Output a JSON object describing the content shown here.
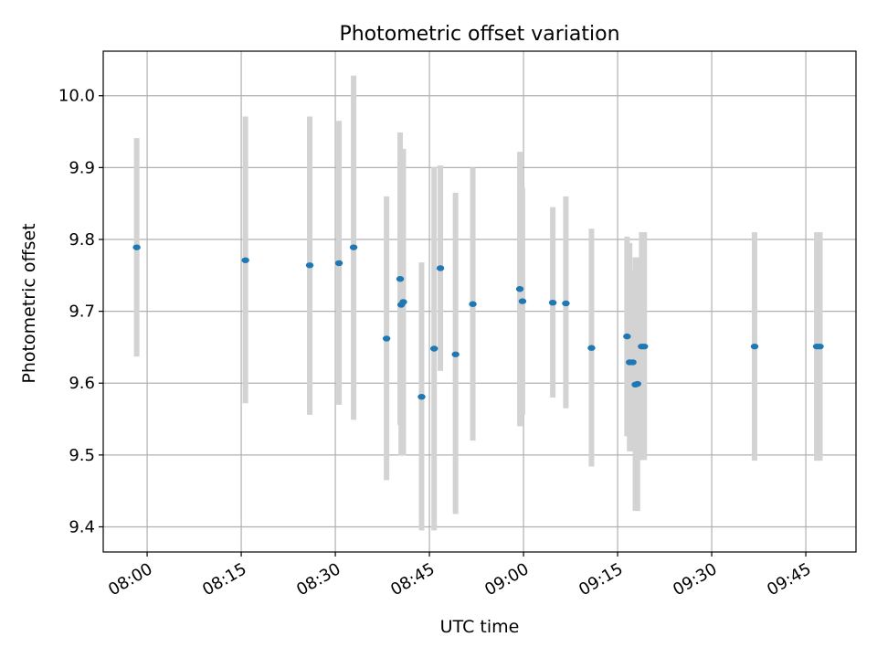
{
  "chart_data": {
    "type": "scatter",
    "title": "Photometric offset variation",
    "xlabel": "UTC time",
    "ylabel": "Photometric offset",
    "grid": true,
    "x_scale": "time",
    "xlim": [
      "07:53",
      "09:53"
    ],
    "ylim": [
      9.365,
      10.062
    ],
    "x_ticks": [
      "08:00",
      "08:15",
      "08:30",
      "08:45",
      "09:00",
      "09:15",
      "09:30",
      "09:45"
    ],
    "y_ticks": [
      "9.4",
      "9.5",
      "9.6",
      "9.7",
      "9.8",
      "9.9",
      "10.0"
    ],
    "errorbar_color": "#d3d3d3",
    "marker_color": "#1f77b4",
    "points": [
      {
        "x": "07:58:20",
        "y": 9.789,
        "yerr_low": 9.637,
        "yerr_high": 9.941
      },
      {
        "x": "08:15:40",
        "y": 9.771,
        "yerr_low": 9.572,
        "yerr_high": 9.971
      },
      {
        "x": "08:25:55",
        "y": 9.764,
        "yerr_low": 9.556,
        "yerr_high": 9.971
      },
      {
        "x": "08:30:35",
        "y": 9.767,
        "yerr_low": 9.57,
        "yerr_high": 9.965
      },
      {
        "x": "08:32:55",
        "y": 9.789,
        "yerr_low": 9.549,
        "yerr_high": 10.028
      },
      {
        "x": "08:38:10",
        "y": 9.662,
        "yerr_low": 9.465,
        "yerr_high": 9.86
      },
      {
        "x": "08:40:20",
        "y": 9.745,
        "yerr_low": 9.542,
        "yerr_high": 9.949
      },
      {
        "x": "08:40:30",
        "y": 9.709,
        "yerr_low": 9.499,
        "yerr_high": 9.92
      },
      {
        "x": "08:40:50",
        "y": 9.713,
        "yerr_low": 9.499,
        "yerr_high": 9.926
      },
      {
        "x": "08:43:45",
        "y": 9.581,
        "yerr_low": 9.395,
        "yerr_high": 9.768
      },
      {
        "x": "08:45:45",
        "y": 9.648,
        "yerr_low": 9.395,
        "yerr_high": 9.901
      },
      {
        "x": "08:46:45",
        "y": 9.76,
        "yerr_low": 9.617,
        "yerr_high": 9.903
      },
      {
        "x": "08:49:10",
        "y": 9.64,
        "yerr_low": 9.418,
        "yerr_high": 9.865
      },
      {
        "x": "08:51:55",
        "y": 9.71,
        "yerr_low": 9.52,
        "yerr_high": 9.9
      },
      {
        "x": "08:59:25",
        "y": 9.731,
        "yerr_low": 9.54,
        "yerr_high": 9.922
      },
      {
        "x": "08:59:50",
        "y": 9.714,
        "yerr_low": 9.556,
        "yerr_high": 9.872
      },
      {
        "x": "09:04:40",
        "y": 9.712,
        "yerr_low": 9.58,
        "yerr_high": 9.845
      },
      {
        "x": "09:06:45",
        "y": 9.711,
        "yerr_low": 9.565,
        "yerr_high": 9.86
      },
      {
        "x": "09:10:50",
        "y": 9.649,
        "yerr_low": 9.484,
        "yerr_high": 9.815
      },
      {
        "x": "09:16:30",
        "y": 9.665,
        "yerr_low": 9.526,
        "yerr_high": 9.804
      },
      {
        "x": "09:16:55",
        "y": 9.629,
        "yerr_low": 9.505,
        "yerr_high": 9.795
      },
      {
        "x": "09:17:25",
        "y": 9.629,
        "yerr_low": 9.505,
        "yerr_high": 9.757
      },
      {
        "x": "09:17:50",
        "y": 9.598,
        "yerr_low": 9.422,
        "yerr_high": 9.775
      },
      {
        "x": "09:18:10",
        "y": 9.599,
        "yerr_low": 9.422,
        "yerr_high": 9.775
      },
      {
        "x": "09:18:50",
        "y": 9.651,
        "yerr_low": 9.493,
        "yerr_high": 9.81
      },
      {
        "x": "09:19:15",
        "y": 9.651,
        "yerr_low": 9.493,
        "yerr_high": 9.81
      },
      {
        "x": "09:36:50",
        "y": 9.651,
        "yerr_low": 9.492,
        "yerr_high": 9.81
      },
      {
        "x": "09:46:45",
        "y": 9.651,
        "yerr_low": 9.492,
        "yerr_high": 9.81
      },
      {
        "x": "09:47:15",
        "y": 9.651,
        "yerr_low": 9.492,
        "yerr_high": 9.81
      }
    ]
  }
}
